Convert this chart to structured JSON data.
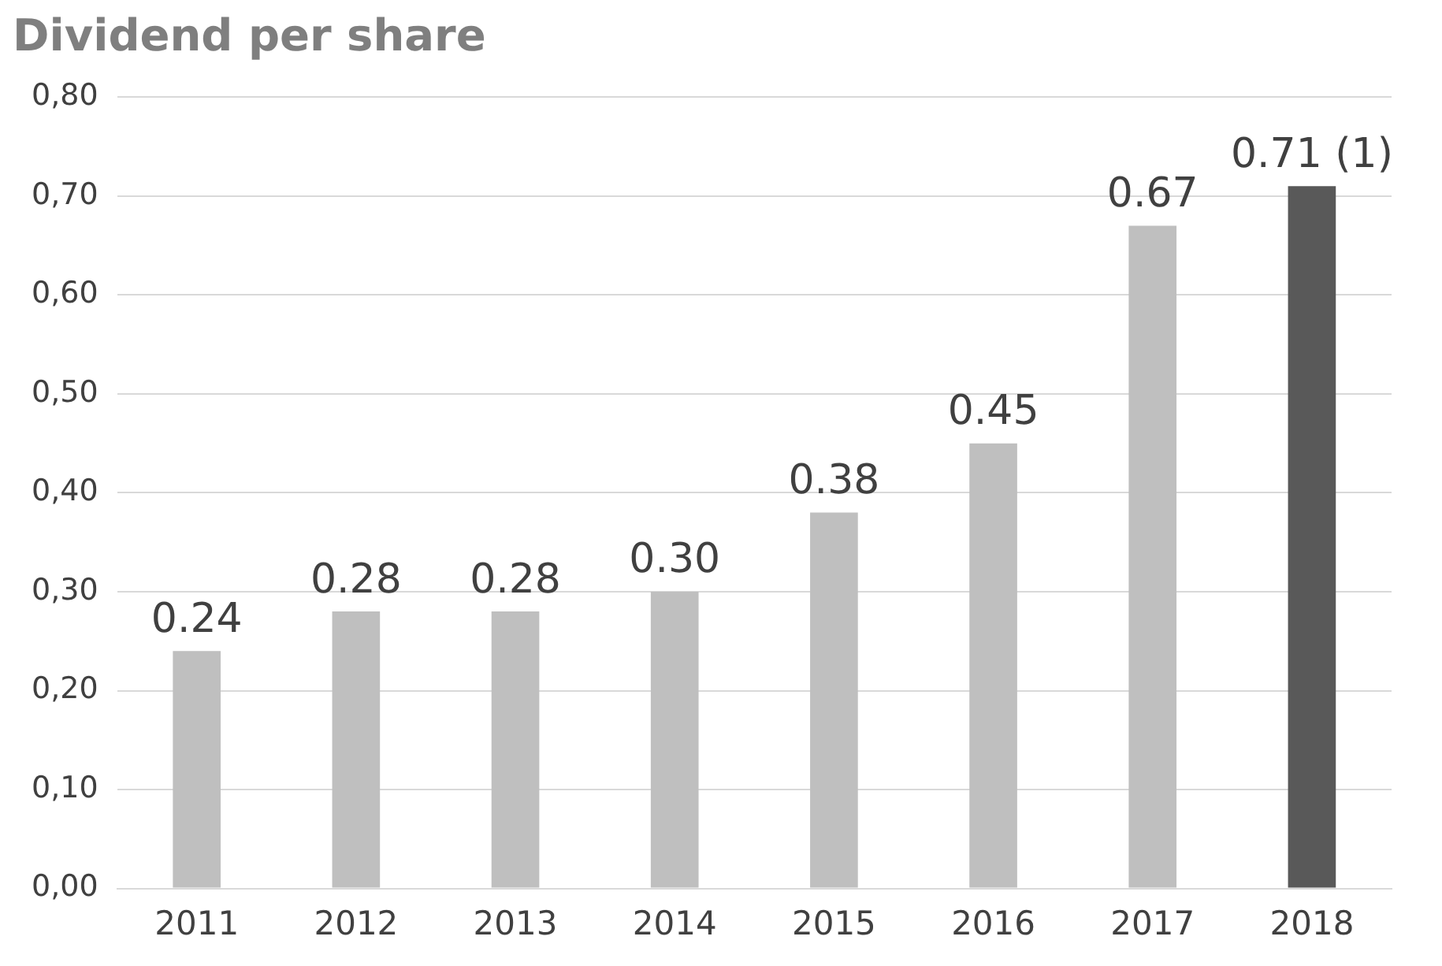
{
  "chart_data": {
    "type": "bar",
    "title": "Dividend per share",
    "categories": [
      "2011",
      "2012",
      "2013",
      "2014",
      "2015",
      "2016",
      "2017",
      "2018"
    ],
    "values": [
      0.24,
      0.28,
      0.28,
      0.3,
      0.38,
      0.45,
      0.67,
      0.71
    ],
    "colors": [
      "#bfbfbf",
      "#bfbfbf",
      "#bfbfbf",
      "#bfbfbf",
      "#bfbfbf",
      "#bfbfbf",
      "#bfbfbf",
      "#595959"
    ],
    "value_labels": [
      "0.24",
      "0.28",
      "0.28",
      "0.30",
      "0.38",
      "0.45",
      "0.67",
      "0.71 (1)"
    ],
    "ylim": [
      0,
      0.8
    ],
    "yticks": [
      {
        "value": 0,
        "label": "0,00"
      },
      {
        "value": 0.1,
        "label": "0,10"
      },
      {
        "value": 0.2,
        "label": "0,20"
      },
      {
        "value": 0.3,
        "label": "0,30"
      },
      {
        "value": 0.4,
        "label": "0,40"
      },
      {
        "value": 0.5,
        "label": "0,50"
      },
      {
        "value": 0.6,
        "label": "0,60"
      },
      {
        "value": 0.7,
        "label": "0,70"
      },
      {
        "value": 0.8,
        "label": "0,80"
      }
    ],
    "grid": "y",
    "legend": false
  }
}
